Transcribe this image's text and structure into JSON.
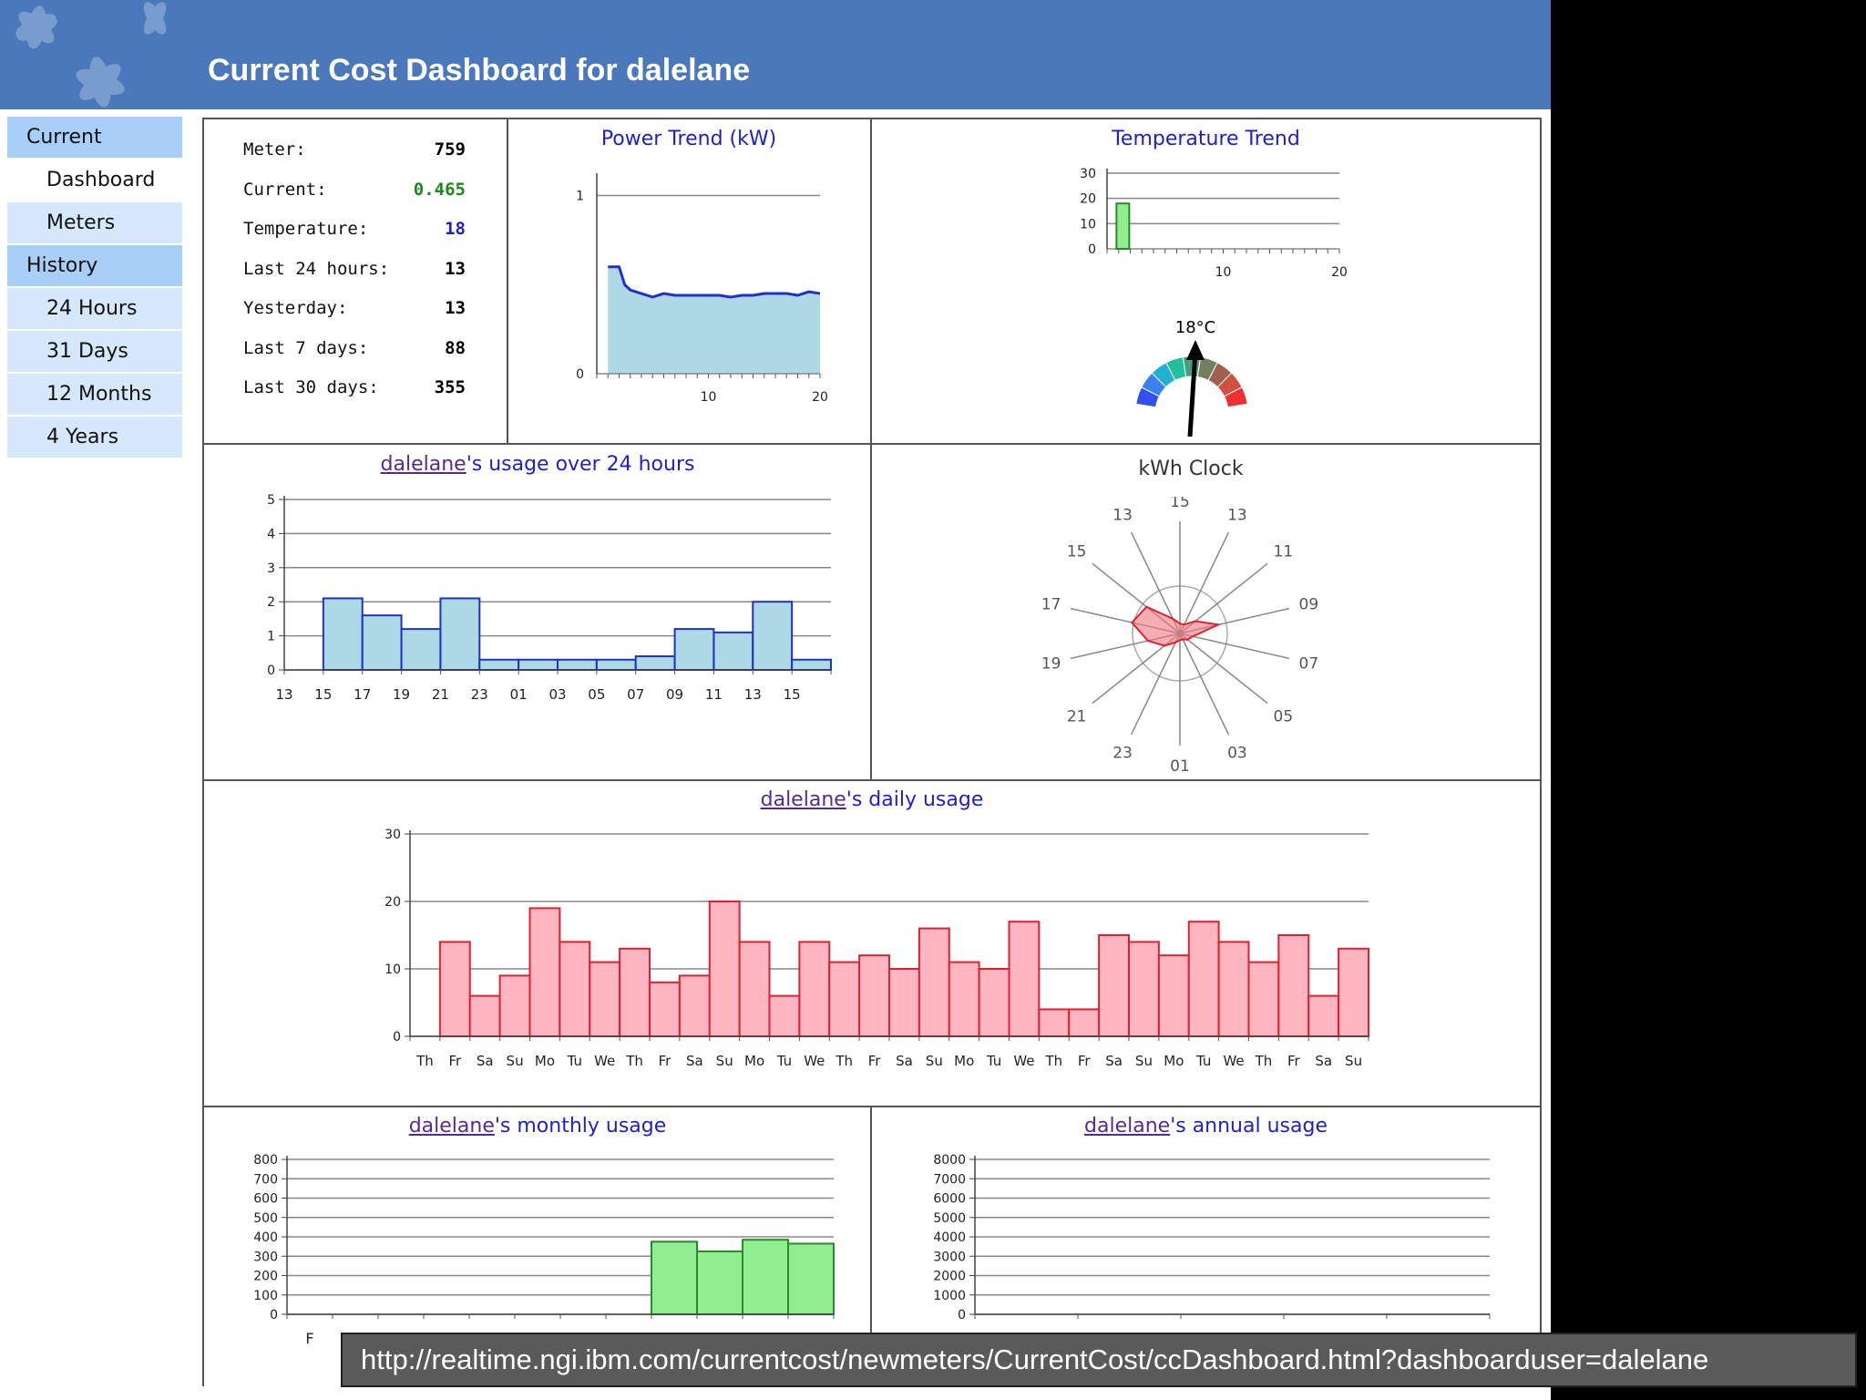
{
  "header": {
    "title": "Current Cost Dashboard for dalelane"
  },
  "nav": [
    {
      "label": "Current",
      "kind": "section"
    },
    {
      "label": "Dashboard",
      "kind": "plain"
    },
    {
      "label": "Meters",
      "kind": "item"
    },
    {
      "label": "History",
      "kind": "section"
    },
    {
      "label": "24 Hours",
      "kind": "item"
    },
    {
      "label": "31 Days",
      "kind": "item"
    },
    {
      "label": "12 Months",
      "kind": "item"
    },
    {
      "label": "4 Years",
      "kind": "item"
    }
  ],
  "stats": [
    {
      "label": "Meter:",
      "value": "759",
      "color": "#000000"
    },
    {
      "label": "Current:",
      "value": "0.465",
      "color": "#1a8a1a"
    },
    {
      "label": "Temperature:",
      "value": "18",
      "color": "#1f1fc8"
    },
    {
      "label": "Last 24 hours:",
      "value": "13",
      "color": "#000000"
    },
    {
      "label": "Yesterday:",
      "value": "13",
      "color": "#000000"
    },
    {
      "label": "Last 7 days:",
      "value": "88",
      "color": "#000000"
    },
    {
      "label": "Last 30 days:",
      "value": "355",
      "color": "#000000"
    }
  ],
  "titles": {
    "power": "Power Trend (kW)",
    "temp": "Temperature Trend",
    "usage24_user": "dalelane",
    "usage24_rest": "'s usage over 24 hours",
    "clock": "kWh Clock",
    "daily_user": "dalelane",
    "daily_rest": "'s daily usage",
    "monthly_user": "dalelane",
    "monthly_rest": "'s monthly usage",
    "annual_user": "dalelane",
    "annual_rest": "'s annual usage"
  },
  "gauge": {
    "label": "18°C",
    "value": 18
  },
  "url": "http://realtime.ngi.ibm.com/currentcost/newmeters/CurrentCost/ccDashboard.html?dashboarduser=dalelane",
  "colors": {
    "header": "#4a78ba",
    "blue_bar_fill": "#add8e6",
    "blue_bar_stroke": "#2030c8",
    "pink_bar_fill": "#ffb6c1",
    "pink_bar_stroke": "#e02030",
    "green_bar_fill": "#90ee90",
    "green_bar_stroke": "#2a8a2a"
  },
  "chart_data": [
    {
      "id": "power",
      "type": "area",
      "title": "Power Trend (kW)",
      "x": [
        1,
        1.5,
        2,
        2.5,
        3,
        4,
        5,
        6,
        7,
        8,
        9,
        10,
        11,
        12,
        13,
        14,
        15,
        16,
        17,
        18,
        19,
        20
      ],
      "y": [
        0.6,
        0.6,
        0.6,
        0.5,
        0.47,
        0.45,
        0.43,
        0.45,
        0.44,
        0.44,
        0.44,
        0.44,
        0.44,
        0.43,
        0.44,
        0.44,
        0.45,
        0.45,
        0.45,
        0.44,
        0.46,
        0.45
      ],
      "xlim": [
        0,
        20
      ],
      "ylim": [
        0,
        1.1
      ],
      "xticks": [
        10,
        20
      ],
      "yticks": [
        0,
        1
      ]
    },
    {
      "id": "temp",
      "type": "bar",
      "title": "Temperature Trend",
      "x": [
        1
      ],
      "values": [
        18
      ],
      "xlim": [
        0,
        20
      ],
      "ylim": [
        0,
        30
      ],
      "xticks": [
        10,
        20
      ],
      "yticks": [
        0,
        10,
        20,
        30
      ]
    },
    {
      "id": "usage24",
      "type": "bar",
      "title": "dalelane's usage over 24 hours",
      "categories": [
        "13",
        "15",
        "17",
        "19",
        "21",
        "23",
        "01",
        "03",
        "05",
        "07",
        "09",
        "11",
        "13",
        "15"
      ],
      "values": [
        0,
        2.1,
        1.6,
        1.2,
        2.1,
        0.3,
        0.3,
        0.3,
        0.3,
        0.4,
        1.2,
        1.1,
        2.0,
        0.3
      ],
      "ylim": [
        0,
        5
      ],
      "yticks": [
        0,
        1,
        2,
        3,
        4,
        5
      ]
    },
    {
      "id": "clock",
      "type": "radar",
      "title": "kWh Clock",
      "labels": [
        "15",
        "13",
        "11",
        "09",
        "07",
        "05",
        "03",
        "01",
        "23",
        "21",
        "19",
        "17",
        "15",
        "13"
      ],
      "values": [
        0.3,
        0.3,
        0.6,
        1.2,
        0.4,
        0.3,
        0.2,
        0.2,
        0.3,
        0.6,
        1.0,
        1.5,
        1.3,
        0.5
      ]
    },
    {
      "id": "daily",
      "type": "bar",
      "title": "dalelane's daily usage",
      "categories": [
        "Th",
        "Fr",
        "Sa",
        "Su",
        "Mo",
        "Tu",
        "We",
        "Th",
        "Fr",
        "Sa",
        "Su",
        "Mo",
        "Tu",
        "We",
        "Th",
        "Fr",
        "Sa",
        "Su",
        "Mo",
        "Tu",
        "We",
        "Th",
        "Fr",
        "Sa",
        "Su",
        "Mo",
        "Tu",
        "We",
        "Th",
        "Fr",
        "Sa",
        "Su"
      ],
      "values": [
        0,
        14,
        6,
        9,
        19,
        14,
        11,
        13,
        8,
        9,
        20,
        14,
        6,
        14,
        11,
        12,
        10,
        16,
        11,
        10,
        17,
        4,
        4,
        15,
        14,
        12,
        17,
        14,
        11,
        15,
        6,
        13
      ],
      "ylim": [
        0,
        30
      ],
      "yticks": [
        0,
        10,
        20,
        30
      ]
    },
    {
      "id": "monthly",
      "type": "bar",
      "title": "dalelane's monthly usage",
      "categories": [
        "F",
        "",
        "",
        "",
        "",
        "",
        "",
        "",
        "",
        "",
        "",
        ""
      ],
      "values": [
        0,
        0,
        0,
        0,
        0,
        0,
        0,
        0,
        375,
        325,
        385,
        365
      ],
      "ylim": [
        0,
        800
      ],
      "yticks": [
        0,
        100,
        200,
        300,
        400,
        500,
        600,
        700,
        800
      ]
    },
    {
      "id": "annual",
      "type": "bar",
      "title": "dalelane's annual usage",
      "categories": [],
      "values": [],
      "ylim": [
        0,
        8000
      ],
      "yticks": [
        0,
        1000,
        2000,
        3000,
        4000,
        5000,
        6000,
        7000,
        8000
      ]
    }
  ]
}
